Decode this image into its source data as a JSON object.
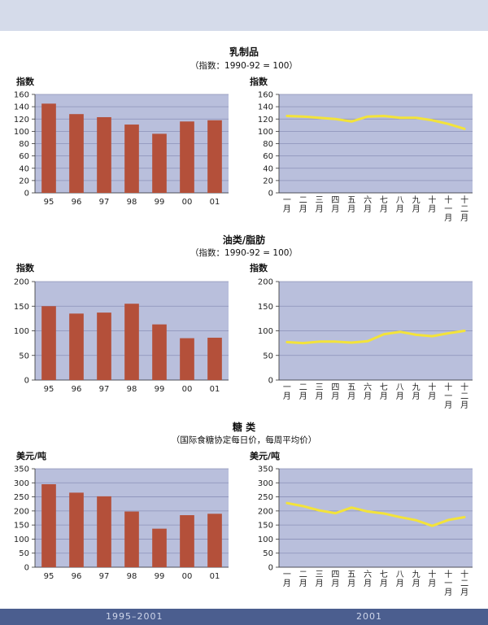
{
  "sections": [
    {
      "title": "乳制品",
      "subtitle": "（指数：1990-92 = 100）",
      "left_unit": "指数",
      "right_unit": "指数"
    },
    {
      "title": "油类/脂肪",
      "subtitle": "（指数：1990-92 = 100）",
      "left_unit": "指数",
      "right_unit": "指数"
    },
    {
      "title": "糖 类",
      "subtitle": "（国际食糖协定每日价，每周平均价）",
      "left_unit": "美元/吨",
      "right_unit": "美元/吨"
    }
  ],
  "footer": {
    "left": "1995–2001",
    "right": "2001"
  },
  "colors": {
    "plot_bg": "#b9bfdc",
    "grid": "#8b91b8",
    "bar": "#b4503a",
    "line": "#f3e33a"
  },
  "chart_data": [
    {
      "id": "dairy-annual",
      "type": "bar",
      "categories": [
        "95",
        "96",
        "97",
        "98",
        "99",
        "00",
        "01"
      ],
      "values": [
        145,
        128,
        123,
        111,
        96,
        116,
        118
      ],
      "ylim": [
        0,
        160
      ],
      "yticks": [
        0,
        20,
        40,
        60,
        80,
        100,
        120,
        140,
        160
      ],
      "ylabel": "指数"
    },
    {
      "id": "dairy-monthly",
      "type": "line",
      "categories": [
        "一月",
        "二月",
        "三月",
        "四月",
        "五月",
        "六月",
        "七月",
        "八月",
        "九月",
        "十月",
        "十一月",
        "十二月"
      ],
      "values": [
        125,
        124,
        122,
        120,
        116,
        124,
        125,
        122,
        122,
        118,
        112,
        104
      ],
      "ylim": [
        0,
        160
      ],
      "yticks": [
        0,
        20,
        40,
        60,
        80,
        100,
        120,
        140,
        160
      ],
      "ylabel": "指数"
    },
    {
      "id": "oils-annual",
      "type": "bar",
      "categories": [
        "95",
        "96",
        "97",
        "98",
        "99",
        "00",
        "01"
      ],
      "values": [
        150,
        135,
        137,
        155,
        113,
        85,
        86
      ],
      "ylim": [
        0,
        200
      ],
      "yticks": [
        0,
        50,
        100,
        150,
        200
      ],
      "ylabel": "指数"
    },
    {
      "id": "oils-monthly",
      "type": "line",
      "categories": [
        "一月",
        "二月",
        "三月",
        "四月",
        "五月",
        "六月",
        "七月",
        "八月",
        "九月",
        "十月",
        "十一月",
        "十二月"
      ],
      "values": [
        77,
        75,
        78,
        78,
        76,
        79,
        93,
        98,
        92,
        89,
        95,
        100
      ],
      "ylim": [
        0,
        200
      ],
      "yticks": [
        0,
        50,
        100,
        150,
        200
      ],
      "ylabel": "指数"
    },
    {
      "id": "sugar-annual",
      "type": "bar",
      "categories": [
        "95",
        "96",
        "97",
        "98",
        "99",
        "00",
        "01"
      ],
      "values": [
        295,
        265,
        252,
        198,
        137,
        185,
        190
      ],
      "ylim": [
        0,
        350
      ],
      "yticks": [
        0,
        50,
        100,
        150,
        200,
        250,
        300,
        350
      ],
      "ylabel": "美元/吨"
    },
    {
      "id": "sugar-monthly",
      "type": "line",
      "categories": [
        "一月",
        "二月",
        "三月",
        "四月",
        "五月",
        "六月",
        "七月",
        "八月",
        "九月",
        "十月",
        "十一月",
        "十二月"
      ],
      "values": [
        228,
        217,
        202,
        192,
        212,
        198,
        191,
        178,
        167,
        147,
        168,
        178
      ],
      "ylim": [
        0,
        350
      ],
      "yticks": [
        0,
        50,
        100,
        150,
        200,
        250,
        300,
        350
      ],
      "ylabel": "美元/吨"
    }
  ]
}
